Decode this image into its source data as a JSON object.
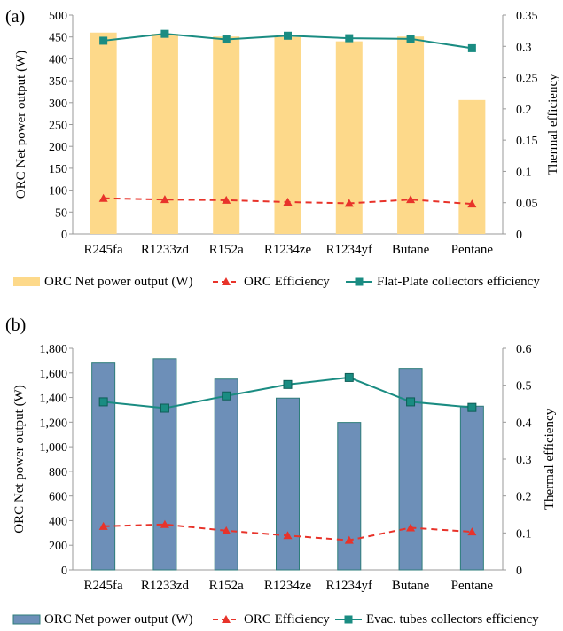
{
  "chart_data": [
    {
      "type": "bar",
      "panel_label": "(a)",
      "categories": [
        "R245fa",
        "R1233zd",
        "R152a",
        "R1234ze",
        "R1234yf",
        "Butane",
        "Pentane"
      ],
      "ylabel": "ORC Net power output (W)",
      "y2label": "Thermal efficiency",
      "ylim": [
        0,
        500
      ],
      "y2lim": [
        0,
        0.35
      ],
      "yticks": [
        "0",
        "50",
        "100",
        "150",
        "200",
        "250",
        "300",
        "350",
        "400",
        "450",
        "500"
      ],
      "y2ticks": [
        "0",
        "0.05",
        "0.1",
        "0.15",
        "0.2",
        "0.25",
        "0.3",
        "0.35"
      ],
      "legend_position": "bottom",
      "series": [
        {
          "name": "ORC Net power output (W)",
          "kind": "bar",
          "axis": "left",
          "color": "#fdd98a",
          "values": [
            460,
            457,
            451,
            450,
            440,
            451,
            306
          ]
        },
        {
          "name": "ORC Efficiency",
          "kind": "line-dashed",
          "axis": "right",
          "color": "#e8332a",
          "values": [
            0.057,
            0.055,
            0.054,
            0.051,
            0.049,
            0.055,
            0.048
          ]
        },
        {
          "name": "Flat-Plate collectors efficiency",
          "kind": "line",
          "axis": "right",
          "color": "#1a8c82",
          "values": [
            0.309,
            0.32,
            0.311,
            0.317,
            0.313,
            0.312,
            0.297
          ]
        }
      ]
    },
    {
      "type": "bar",
      "panel_label": "(b)",
      "categories": [
        "R245fa",
        "R1233zd",
        "R152a",
        "R1234ze",
        "R1234yf",
        "Butane",
        "Pentane"
      ],
      "ylabel": "ORC Net power output (W)",
      "y2label": "Thermal efficiency",
      "ylim": [
        0,
        1800
      ],
      "y2lim": [
        0,
        0.6
      ],
      "yticks": [
        "0",
        "200",
        "400",
        "600",
        "800",
        "1,000",
        "1,200",
        "1,400",
        "1,600",
        "1,800"
      ],
      "y2ticks": [
        "0",
        "0.1",
        "0.2",
        "0.3",
        "0.4",
        "0.5",
        "0.6"
      ],
      "legend_position": "bottom",
      "series": [
        {
          "name": "ORC Net power output (W)",
          "kind": "bar",
          "axis": "left",
          "color": "#6d8fb8",
          "values": [
            1680,
            1715,
            1550,
            1395,
            1198,
            1637,
            1330
          ]
        },
        {
          "name": "ORC Efficiency",
          "kind": "line-dashed",
          "axis": "right",
          "color": "#e8332a",
          "values": [
            0.118,
            0.123,
            0.106,
            0.093,
            0.08,
            0.114,
            0.103
          ]
        },
        {
          "name": "Evac. tubes collectors efficiency",
          "kind": "line",
          "axis": "right",
          "color": "#1a8c82",
          "values": [
            0.455,
            0.438,
            0.471,
            0.502,
            0.521,
            0.455,
            0.44
          ]
        }
      ]
    }
  ]
}
